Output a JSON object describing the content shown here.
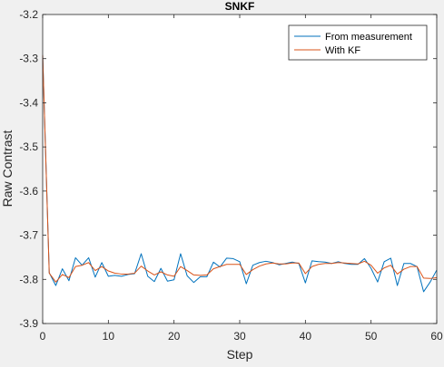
{
  "chart_data": {
    "type": "line",
    "title": "SNKF",
    "xlabel": "Step",
    "ylabel": "Raw Contrast",
    "xlim": [
      0,
      60
    ],
    "ylim": [
      -3.9,
      -3.2
    ],
    "xticks": [
      0,
      10,
      20,
      30,
      40,
      50,
      60
    ],
    "yticks": [
      -3.9,
      -3.8,
      -3.7,
      -3.6,
      -3.5,
      -3.4,
      -3.3,
      -3.2
    ],
    "grid": false,
    "legend_position": "top-right",
    "series": [
      {
        "name": "From measurement",
        "color": "#0072bd",
        "x": [
          0,
          1,
          2,
          3,
          4,
          5,
          6,
          7,
          8,
          9,
          10,
          11,
          12,
          13,
          14,
          15,
          16,
          17,
          18,
          19,
          20,
          21,
          22,
          23,
          24,
          25,
          26,
          27,
          28,
          29,
          30,
          31,
          32,
          33,
          34,
          35,
          36,
          37,
          38,
          39,
          40,
          41,
          42,
          43,
          44,
          45,
          46,
          47,
          48,
          49,
          50,
          51,
          52,
          53,
          54,
          55,
          56,
          57,
          58,
          59,
          60
        ],
        "y": [
          -3.292,
          -3.785,
          -3.814,
          -3.776,
          -3.803,
          -3.751,
          -3.768,
          -3.751,
          -3.795,
          -3.762,
          -3.793,
          -3.791,
          -3.793,
          -3.789,
          -3.787,
          -3.742,
          -3.793,
          -3.805,
          -3.775,
          -3.804,
          -3.801,
          -3.742,
          -3.792,
          -3.807,
          -3.794,
          -3.794,
          -3.761,
          -3.772,
          -3.752,
          -3.753,
          -3.76,
          -3.81,
          -3.768,
          -3.762,
          -3.759,
          -3.762,
          -3.767,
          -3.764,
          -3.761,
          -3.764,
          -3.808,
          -3.758,
          -3.76,
          -3.761,
          -3.764,
          -3.76,
          -3.764,
          -3.766,
          -3.766,
          -3.753,
          -3.775,
          -3.806,
          -3.76,
          -3.752,
          -3.814,
          -3.764,
          -3.764,
          -3.771,
          -3.828,
          -3.806,
          -3.779
        ]
      },
      {
        "name": "With KF",
        "color": "#d95319",
        "x": [
          0,
          1,
          2,
          3,
          4,
          5,
          6,
          7,
          8,
          9,
          10,
          11,
          12,
          13,
          14,
          15,
          16,
          17,
          18,
          19,
          20,
          21,
          22,
          23,
          24,
          25,
          26,
          27,
          28,
          29,
          30,
          31,
          32,
          33,
          34,
          35,
          36,
          37,
          38,
          39,
          40,
          41,
          42,
          43,
          44,
          45,
          46,
          47,
          48,
          49,
          50,
          51,
          52,
          53,
          54,
          55,
          56,
          57,
          58,
          59,
          60
        ],
        "y": [
          -3.292,
          -3.786,
          -3.806,
          -3.789,
          -3.796,
          -3.771,
          -3.768,
          -3.762,
          -3.78,
          -3.771,
          -3.781,
          -3.786,
          -3.788,
          -3.788,
          -3.786,
          -3.77,
          -3.781,
          -3.79,
          -3.783,
          -3.79,
          -3.793,
          -3.771,
          -3.78,
          -3.79,
          -3.791,
          -3.79,
          -3.776,
          -3.771,
          -3.766,
          -3.766,
          -3.766,
          -3.789,
          -3.778,
          -3.77,
          -3.765,
          -3.763,
          -3.765,
          -3.765,
          -3.763,
          -3.763,
          -3.787,
          -3.771,
          -3.766,
          -3.764,
          -3.764,
          -3.762,
          -3.763,
          -3.764,
          -3.765,
          -3.759,
          -3.768,
          -3.786,
          -3.774,
          -3.768,
          -3.788,
          -3.777,
          -3.771,
          -3.771,
          -3.797,
          -3.798,
          -3.796
        ]
      }
    ]
  }
}
